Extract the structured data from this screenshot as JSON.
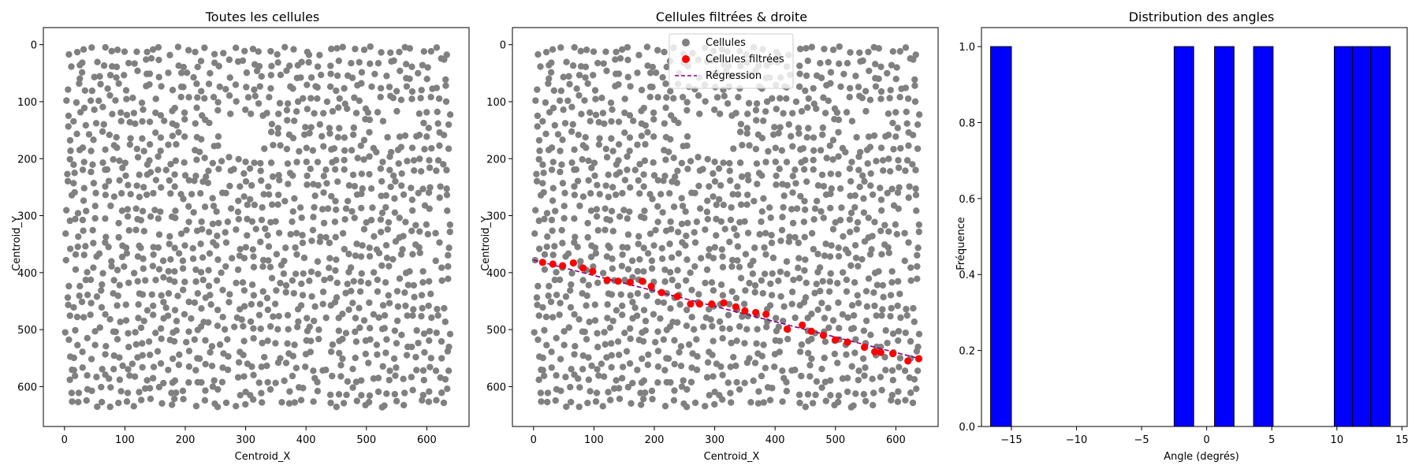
{
  "figure": {
    "background": "#ffffff"
  },
  "chart_data": [
    {
      "type": "scatter",
      "title": "Toutes les cellules",
      "xlabel": "Centroid_X",
      "ylabel": "Centroid_Y",
      "xlim": [
        -35,
        670
      ],
      "ylim": [
        670,
        -30
      ],
      "y_inverted": true,
      "xticks": [
        0,
        100,
        200,
        300,
        400,
        500,
        600
      ],
      "yticks": [
        0,
        100,
        200,
        300,
        400,
        500,
        600
      ],
      "series": [
        {
          "color": "#808080",
          "kind": "points",
          "points_note": "about 1300 grey points spread uniformly over x 0–640, y 0–640, with slightly sparser regions near (290,150) and (560,140)"
        }
      ],
      "legend": "none",
      "grid": false
    },
    {
      "type": "scatter",
      "title": "Cellules filtrées & droite",
      "xlabel": "Centroid_X",
      "ylabel": "Centroid_Y",
      "xlim": [
        -35,
        670
      ],
      "ylim": [
        670,
        -30
      ],
      "y_inverted": true,
      "xticks": [
        0,
        100,
        200,
        300,
        400,
        500,
        600
      ],
      "yticks": [
        0,
        100,
        200,
        300,
        400,
        500,
        600
      ],
      "legend_position": "top-center",
      "legend": [
        "Cellules",
        "Cellules filtrées",
        "Régression"
      ],
      "series": [
        {
          "name": "Cellules",
          "color": "#808080",
          "kind": "points"
        },
        {
          "name": "Cellules filtrées",
          "color": "#ff0000",
          "kind": "points",
          "x": [
            15,
            32,
            48,
            66,
            82,
            98,
            122,
            140,
            160,
            180,
            195,
            212,
            238,
            260,
            275,
            295,
            315,
            335,
            350,
            368,
            385,
            420,
            445,
            460,
            480,
            500,
            520,
            548,
            565,
            575,
            595,
            620,
            638
          ],
          "y": [
            382,
            385,
            388,
            383,
            392,
            398,
            413,
            415,
            417,
            415,
            424,
            435,
            442,
            455,
            455,
            455,
            453,
            460,
            467,
            470,
            473,
            499,
            492,
            503,
            510,
            518,
            522,
            531,
            539,
            540,
            542,
            555,
            551
          ]
        },
        {
          "name": "Régression",
          "color": "#800080",
          "kind": "dashed-line",
          "x": [
            0,
            640
          ],
          "y": [
            378,
            551
          ]
        }
      ],
      "grid": false
    },
    {
      "type": "bar",
      "title": "Distribution des angles",
      "xlabel": "Angle (degrés)",
      "ylabel": "Fréquence",
      "xlim": [
        -17.3,
        15.4
      ],
      "ylim": [
        0,
        1.05
      ],
      "xticks": [
        -15,
        -10,
        -5,
        0,
        5,
        10,
        15
      ],
      "yticks": [
        0.0,
        0.2,
        0.4,
        0.6,
        0.8,
        1.0
      ],
      "ytick_labels": [
        "0.0",
        "0.2",
        "0.4",
        "0.6",
        "0.8",
        "1.0"
      ],
      "bar_color": "#0000ff",
      "bar_edge": "#000000",
      "bins": [
        {
          "x0": -16.6,
          "x1": -15.0,
          "value": 1
        },
        {
          "x0": -2.5,
          "x1": -1.0,
          "value": 1
        },
        {
          "x0": 0.6,
          "x1": 2.1,
          "value": 1
        },
        {
          "x0": 3.6,
          "x1": 5.1,
          "value": 1
        },
        {
          "x0": 9.8,
          "x1": 11.2,
          "value": 1
        },
        {
          "x0": 11.2,
          "x1": 12.6,
          "value": 1
        },
        {
          "x0": 12.6,
          "x1": 14.1,
          "value": 1
        }
      ],
      "legend": "none",
      "grid": false
    }
  ]
}
